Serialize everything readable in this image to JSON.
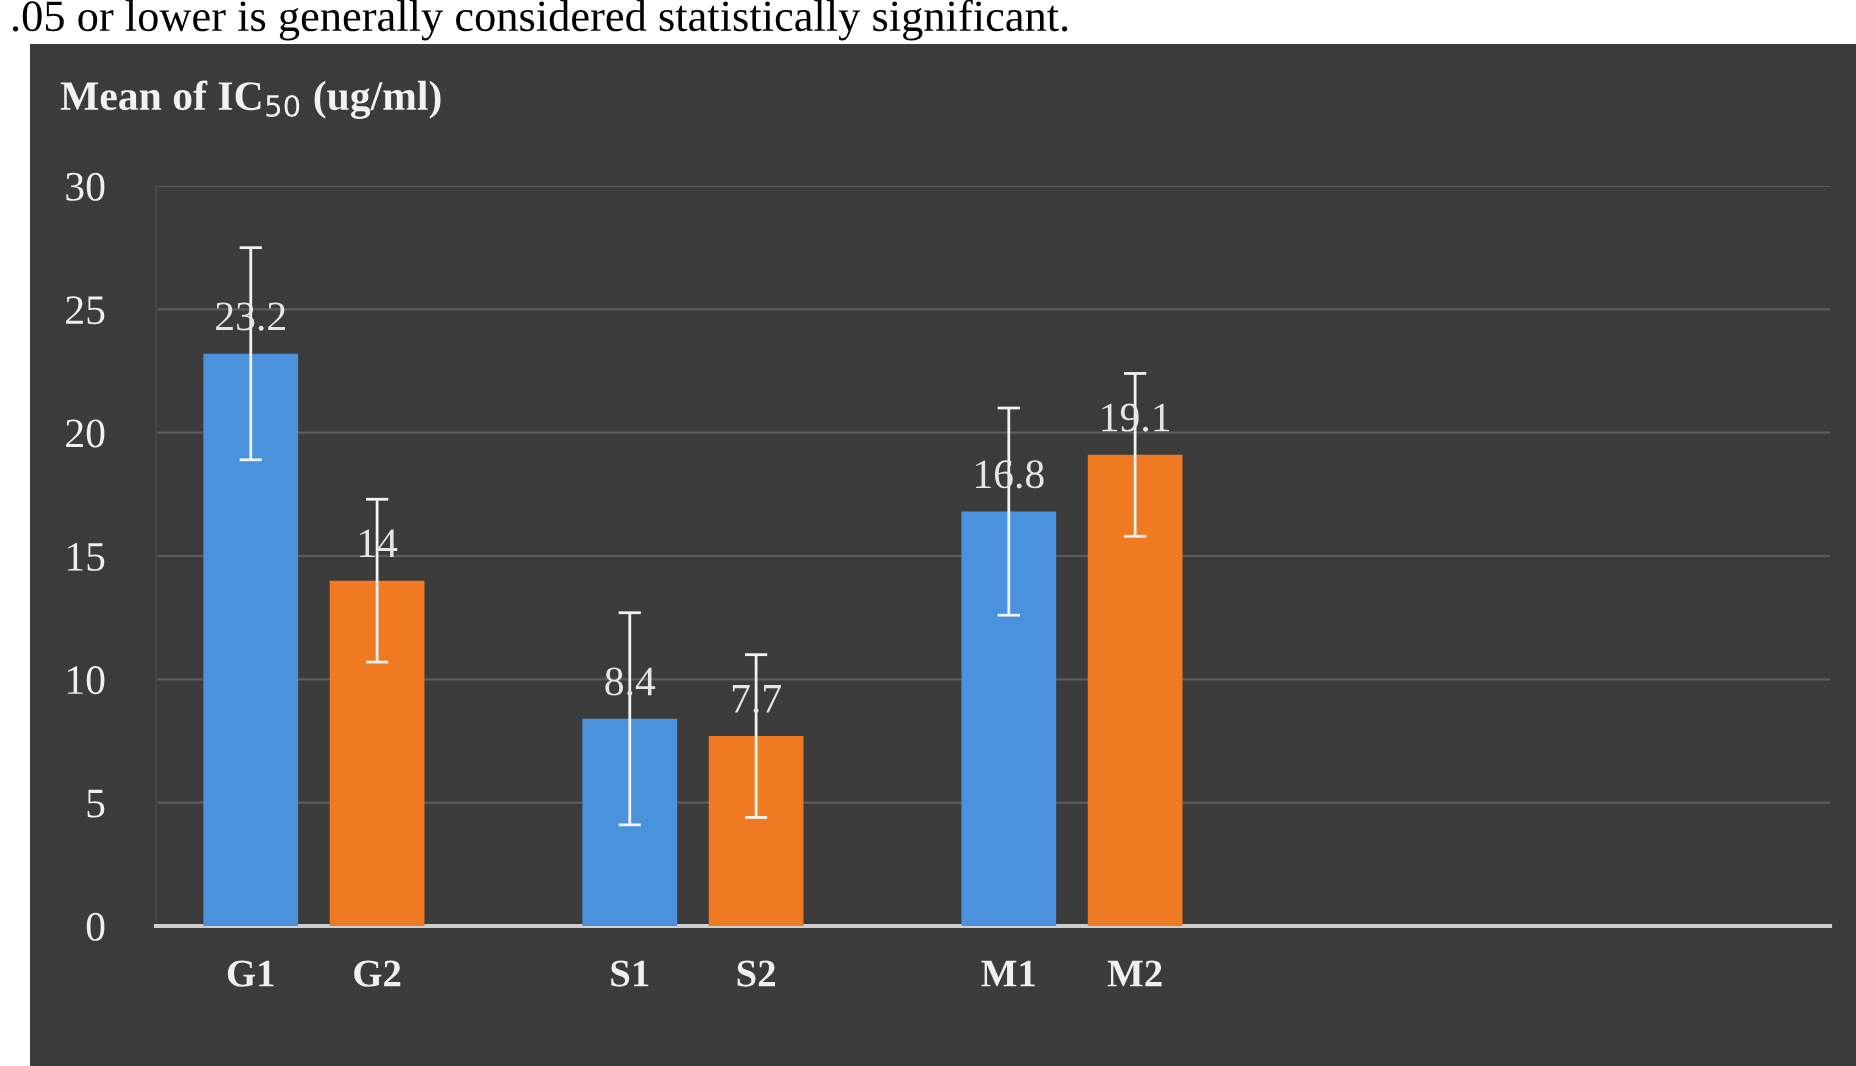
{
  "chart_data": {
    "type": "bar",
    "title": "Mean of IC$_{50}$ (ug/ml)",
    "annotations": [
      ".05 or lower is generally considered statistically significant."
    ],
    "categories": [
      "G1",
      "G2",
      null,
      "S1",
      "S2",
      null,
      "M1",
      "M2",
      null,
      null,
      null,
      null,
      null
    ],
    "values": [
      23.2,
      14,
      null,
      8.4,
      7.7,
      null,
      16.8,
      19.1,
      null,
      null,
      null,
      null,
      null
    ],
    "colors": [
      "#4a93dc",
      "#ef7a22",
      null,
      "#4a93dc",
      "#ef7a22",
      null,
      "#4a93dc",
      "#ef7a22",
      null,
      null,
      null,
      null,
      null
    ],
    "errors": [
      4.3,
      3.3,
      null,
      4.3,
      3.3,
      null,
      4.2,
      3.3,
      null,
      null,
      null,
      null,
      null
    ],
    "data_labels": true,
    "ylim": [
      0,
      30
    ],
    "yticks": [
      0,
      5,
      10,
      15,
      20,
      25,
      30
    ],
    "grid": "y"
  }
}
